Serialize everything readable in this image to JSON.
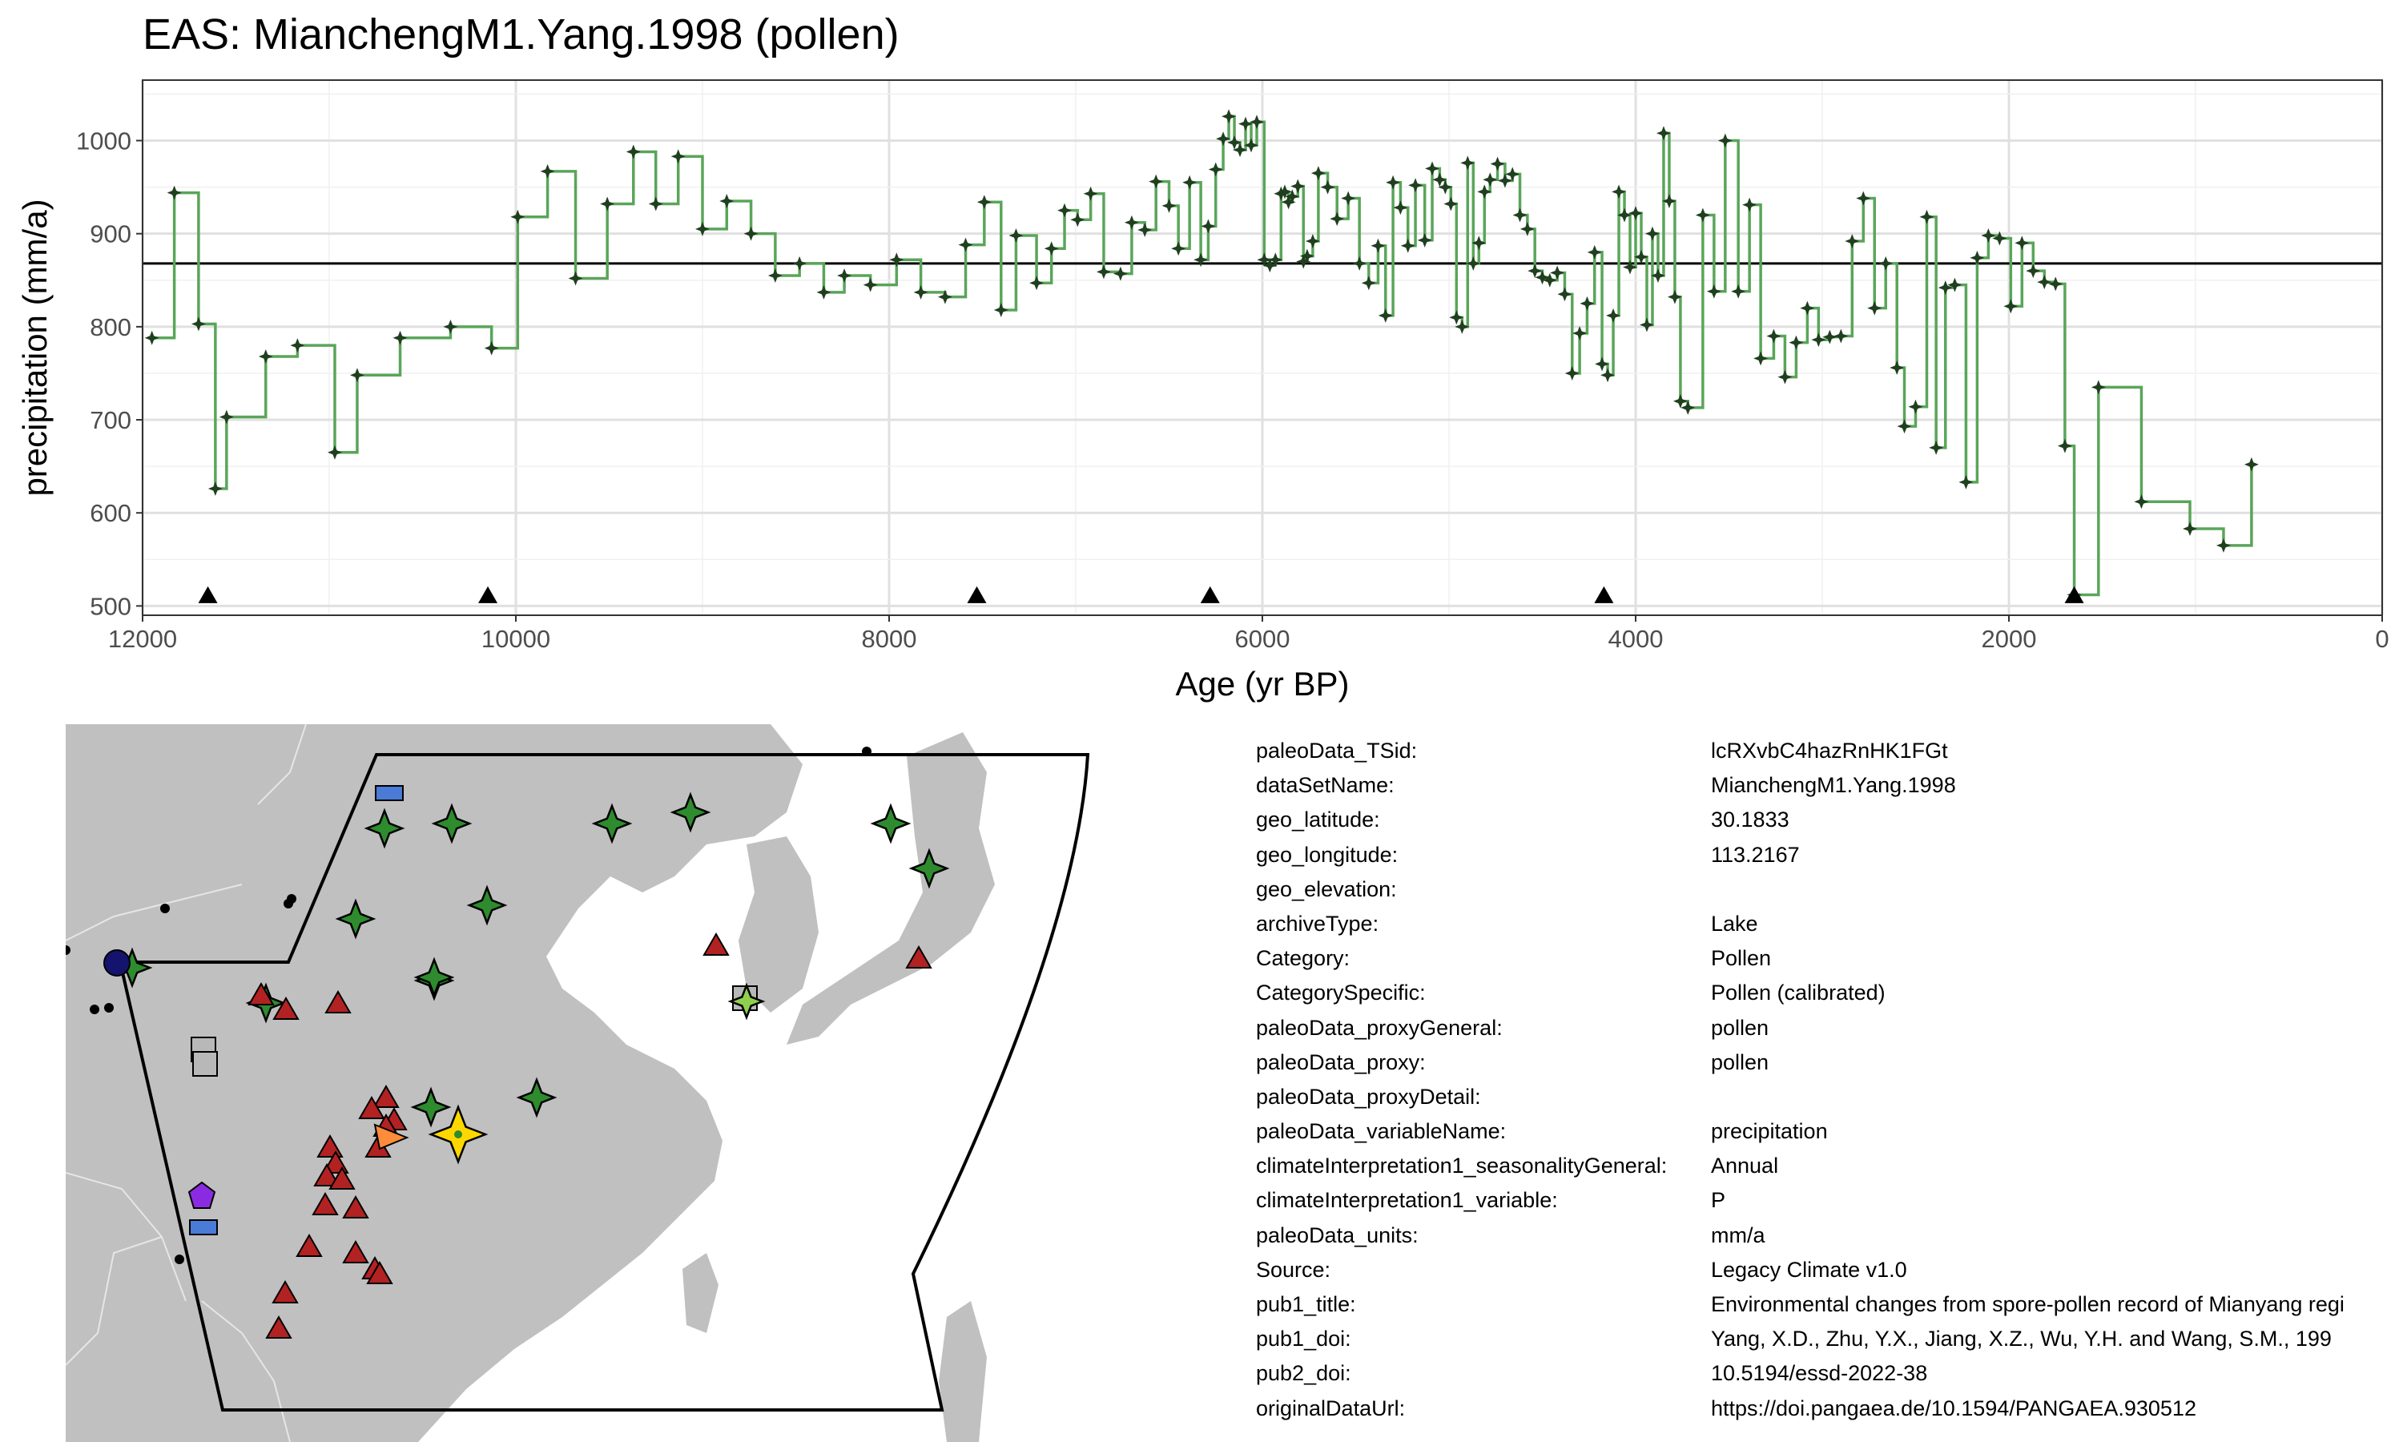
{
  "title": "EAS: MianchengM1.Yang.1998 (pollen)",
  "chart_data": {
    "type": "line",
    "xlabel": "Age (yr BP)",
    "ylabel": "precipitation (mm/a)",
    "xlim": [
      12000,
      0
    ],
    "ylim": [
      490,
      1065
    ],
    "x_ticks": [
      12000,
      10000,
      8000,
      6000,
      4000,
      2000,
      0
    ],
    "y_ticks": [
      500,
      600,
      700,
      800,
      900,
      1000
    ],
    "mean_line": 868,
    "series_color": "#5aa55a",
    "marker_color": "#1f3f1f",
    "triangle_color": "#000000",
    "age_control_points": [
      11650,
      10150,
      7530,
      6280,
      4170,
      1650
    ],
    "x": [
      11950,
      11830,
      11700,
      11610,
      11550,
      11340,
      11170,
      10970,
      10850,
      10620,
      10350,
      10130,
      9990,
      9830,
      9680,
      9510,
      9370,
      9250,
      9130,
      9000,
      8870,
      8740,
      8610,
      8480,
      8350,
      8240,
      8100,
      7960,
      7830,
      7700,
      7590,
      7490,
      7400,
      7320,
      7210,
      7130,
      7060,
      6990,
      6920,
      6850,
      6760,
      6700,
      6630,
      6570,
      6500,
      6450,
      6390,
      6330,
      6290,
      6250,
      6210,
      6180,
      6150,
      6120,
      6090,
      6060,
      6030,
      5990,
      5960,
      5930,
      5900,
      5880,
      5860,
      5840,
      5810,
      5780,
      5760,
      5730,
      5700,
      5650,
      5600,
      5540,
      5480,
      5430,
      5380,
      5340,
      5300,
      5260,
      5220,
      5180,
      5130,
      5090,
      5050,
      5020,
      4990,
      4960,
      4930,
      4900,
      4870,
      4840,
      4810,
      4780,
      4740,
      4700,
      4660,
      4620,
      4580,
      4540,
      4500,
      4460,
      4420,
      4380,
      4340,
      4300,
      4260,
      4220,
      4180,
      4150,
      4120,
      4090,
      4060,
      4030,
      4000,
      3970,
      3940,
      3910,
      3880,
      3850,
      3820,
      3790,
      3760,
      3720,
      3640,
      3580,
      3520,
      3450,
      3390,
      3330,
      3260,
      3200,
      3140,
      3080,
      3020,
      2960,
      2900,
      2840,
      2780,
      2720,
      2660,
      2600,
      2560,
      2500,
      2440,
      2390,
      2340,
      2290,
      2230,
      2170,
      2110,
      2050,
      1990,
      1930,
      1870,
      1810,
      1750,
      1700,
      1650,
      1520,
      1290,
      1030,
      850,
      700
    ],
    "y": [
      788,
      944,
      803,
      626,
      703,
      768,
      780,
      665,
      748,
      788,
      800,
      777,
      918,
      967,
      852,
      932,
      988,
      932,
      983,
      905,
      935,
      900,
      855,
      868,
      837,
      855,
      845,
      872,
      837,
      832,
      888,
      934,
      818,
      898,
      847,
      884,
      925,
      915,
      943,
      859,
      857,
      912,
      904,
      956,
      930,
      884,
      955,
      872,
      908,
      969,
      1002,
      1026,
      998,
      990,
      1018,
      995,
      1020,
      872,
      866,
      872,
      943,
      945,
      934,
      940,
      951,
      870,
      876,
      892,
      965,
      950,
      916,
      938,
      868,
      847,
      887,
      812,
      955,
      928,
      887,
      952,
      893,
      970,
      958,
      950,
      932,
      810,
      800,
      976,
      868,
      890,
      945,
      958,
      975,
      957,
      964,
      920,
      905,
      860,
      853,
      850,
      858,
      835,
      750,
      793,
      825,
      880,
      760,
      748,
      812,
      945,
      920,
      864,
      922,
      875,
      802,
      900,
      855,
      1008,
      935,
      832,
      720,
      713,
      920,
      838,
      1000,
      838,
      931,
      766,
      790,
      746,
      783,
      820,
      786,
      789,
      790,
      892,
      938,
      820,
      868,
      756,
      693,
      714,
      918,
      670,
      842,
      845,
      633,
      874,
      898,
      895,
      822,
      890,
      860,
      848,
      846,
      672,
      512,
      735,
      612,
      583,
      565,
      652
    ],
    "map": {
      "legend": [],
      "land_color": "#c0c0c0",
      "border_color": "#e6e6e6",
      "colors": {
        "forest_green": "#2e8b2e",
        "red": "#b22222",
        "blue": "#4a7bd6",
        "gray": "#b8b8b8",
        "purple": "#8a2be2",
        "navy": "#14146e",
        "orange": "#ff8c3a",
        "gold": "#ffd700",
        "lime": "#8fd14f"
      }
    }
  },
  "metadata": [
    {
      "key": "paleoData_TSid:",
      "value": "lcRXvbC4hazRnHK1FGt"
    },
    {
      "key": "dataSetName:",
      "value": "MianchengM1.Yang.1998"
    },
    {
      "key": "geo_latitude:",
      "value": "30.1833"
    },
    {
      "key": "geo_longitude:",
      "value": "113.2167"
    },
    {
      "key": "geo_elevation:",
      "value": ""
    },
    {
      "key": "archiveType:",
      "value": "Lake"
    },
    {
      "key": "Category:",
      "value": "Pollen"
    },
    {
      "key": "CategorySpecific:",
      "value": "Pollen (calibrated)"
    },
    {
      "key": "paleoData_proxyGeneral:",
      "value": "pollen"
    },
    {
      "key": "paleoData_proxy:",
      "value": "pollen"
    },
    {
      "key": "paleoData_proxyDetail:",
      "value": ""
    },
    {
      "key": "paleoData_variableName:",
      "value": "precipitation"
    },
    {
      "key": "climateInterpretation1_seasonalityGeneral:",
      "value": "Annual"
    },
    {
      "key": "climateInterpretation1_variable:",
      "value": "P"
    },
    {
      "key": "paleoData_units:",
      "value": "mm/a"
    },
    {
      "key": "Source:",
      "value": "Legacy Climate v1.0"
    },
    {
      "key": "pub1_title:",
      "value": "Environmental changes from spore-pollen record of Mianyang regi"
    },
    {
      "key": "pub1_doi:",
      "value": "Yang, X.D., Zhu, Y.X., Jiang, X.Z., Wu, Y.H. and Wang, S.M., 199"
    },
    {
      "key": "pub2_doi:",
      "value": "10.5194/essd-2022-38"
    },
    {
      "key": "originalDataUrl:",
      "value": "https://doi.pangaea.de/10.1594/PANGAEA.930512"
    }
  ]
}
